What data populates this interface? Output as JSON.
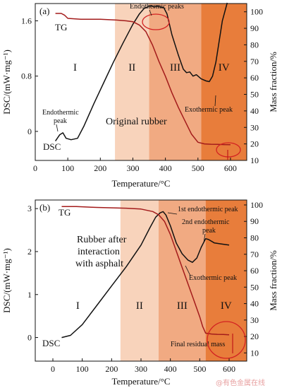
{
  "chart_data": [
    {
      "panel_label": "(a)",
      "type": "line",
      "xlabel": "Temperature/°C",
      "ylabel_left": "DSC/(mW·mg⁻¹)",
      "ylabel_right": "Mass fraction/%",
      "xlim": [
        0,
        650
      ],
      "ylim_left": [
        -0.42,
        1.85
      ],
      "ylim_right": [
        10,
        105
      ],
      "x_ticks": [
        0,
        100,
        200,
        300,
        400,
        500,
        600
      ],
      "y_left_ticks": [
        0,
        0.8,
        1.6
      ],
      "y_left_tick_labels": [
        "0",
        "0.8",
        "1.6"
      ],
      "y_right_ticks": [
        10,
        20,
        30,
        40,
        50,
        60,
        70,
        80,
        90,
        100
      ],
      "regions": [
        {
          "label": "I",
          "x_range": [
            0,
            245
          ],
          "color": "#ffffff"
        },
        {
          "label": "II",
          "x_range": [
            245,
            350
          ],
          "color": "#f8d3bb"
        },
        {
          "label": "III",
          "x_range": [
            350,
            510
          ],
          "color": "#f1aa82"
        },
        {
          "label": "IV",
          "x_range": [
            510,
            650
          ],
          "color": "#e87d3b"
        }
      ],
      "series": [
        {
          "name": "DSC",
          "axis": "left",
          "color": "#111111",
          "x": [
            62,
            75,
            85,
            95,
            110,
            130,
            150,
            180,
            210,
            240,
            270,
            300,
            320,
            335,
            345,
            355,
            365,
            375,
            385,
            395,
            405,
            420,
            440,
            455,
            465,
            475,
            485,
            495,
            510,
            525,
            535,
            545,
            555,
            565,
            575,
            590
          ],
          "y": [
            -0.14,
            -0.05,
            -0.02,
            -0.1,
            -0.12,
            -0.1,
            0.08,
            0.4,
            0.7,
            1.0,
            1.28,
            1.55,
            1.7,
            1.78,
            1.8,
            1.82,
            1.8,
            1.81,
            1.8,
            1.79,
            1.7,
            1.4,
            1.1,
            0.9,
            0.85,
            0.86,
            0.8,
            0.82,
            0.76,
            0.73,
            0.72,
            0.8,
            1.0,
            1.3,
            1.6,
            1.86
          ]
        },
        {
          "name": "TG",
          "axis": "right",
          "color": "#a31b1b",
          "x": [
            62,
            80,
            90,
            100,
            140,
            200,
            250,
            280,
            300,
            320,
            340,
            360,
            380,
            400,
            420,
            440,
            460,
            480,
            500,
            520,
            540,
            560,
            580,
            600
          ],
          "y": [
            99,
            99,
            98,
            96,
            95.5,
            95.5,
            95,
            94.5,
            94,
            92,
            88,
            80,
            70,
            61,
            51,
            42,
            34,
            26,
            21,
            20,
            19.8,
            19.7,
            19.6,
            19.5
          ]
        }
      ],
      "annotations": [
        "Endothermic peaks",
        "Endothermic peak",
        "Exothermic peak",
        "Original rubber",
        "TG",
        "DSC"
      ]
    },
    {
      "panel_label": "(b)",
      "type": "line",
      "xlabel": "Temperature/°C",
      "ylabel_left": "DSC/(mW·mg⁻¹)",
      "ylabel_right": "Mass fraction/%",
      "xlim": [
        -60,
        660
      ],
      "ylim_left": [
        -0.55,
        3.2
      ],
      "ylim_right": [
        5,
        103
      ],
      "x_ticks": [
        0,
        100,
        200,
        300,
        400,
        500,
        600
      ],
      "y_left_ticks": [
        0,
        1,
        2,
        3
      ],
      "y_left_tick_labels": [
        "0",
        "1",
        "2",
        "3"
      ],
      "y_right_ticks": [
        10,
        20,
        30,
        40,
        50,
        60,
        70,
        80,
        90,
        100
      ],
      "regions": [
        {
          "label": "I",
          "x_range": [
            -60,
            230
          ],
          "color": "#ffffff"
        },
        {
          "label": "II",
          "x_range": [
            230,
            360
          ],
          "color": "#f8d3bb"
        },
        {
          "label": "III",
          "x_range": [
            360,
            520
          ],
          "color": "#f1aa82"
        },
        {
          "label": "IV",
          "x_range": [
            520,
            660
          ],
          "color": "#e87d3b"
        }
      ],
      "series": [
        {
          "name": "DSC",
          "axis": "left",
          "color": "#111111",
          "x": [
            30,
            60,
            100,
            150,
            200,
            250,
            300,
            330,
            350,
            365,
            375,
            385,
            400,
            420,
            440,
            460,
            475,
            490,
            505,
            520,
            530,
            550,
            570,
            600
          ],
          "y": [
            0.0,
            0.05,
            0.3,
            0.75,
            1.2,
            1.65,
            2.15,
            2.55,
            2.8,
            2.9,
            2.93,
            2.85,
            2.6,
            2.2,
            1.95,
            1.8,
            1.75,
            1.85,
            2.1,
            2.3,
            2.28,
            2.2,
            2.18,
            2.15
          ]
        },
        {
          "name": "TG",
          "axis": "right",
          "color": "#a31b1b",
          "x": [
            30,
            80,
            150,
            250,
            300,
            340,
            360,
            380,
            400,
            420,
            440,
            460,
            480,
            500,
            510,
            520,
            540,
            560,
            580,
            600
          ],
          "y": [
            99,
            99,
            98.5,
            98,
            97.5,
            96,
            94,
            90,
            82,
            72,
            62,
            52,
            42,
            32,
            26,
            22,
            21.5,
            21.3,
            21.2,
            21
          ]
        }
      ],
      "annotations": [
        "1st endothermic peak",
        "2nd endothermic peak",
        "Exothermic peak",
        "Final residual mass",
        "Rubber after interaction with asphalt",
        "TG",
        "DSC"
      ]
    }
  ],
  "text": {
    "a_panel": "(a)",
    "a_tg": "TG",
    "a_dsc": "DSC",
    "a_endo_peaks": "Endothermic peaks",
    "a_endo_peak_1": "Endothermic",
    "a_endo_peak_2": "peak",
    "a_exo_peak": "Exothermic peak",
    "a_sample": "Original rubber",
    "b_panel": "(b)",
    "b_tg": "TG",
    "b_dsc": "DSC",
    "b_first_endo": "1st endothermic peak",
    "b_second_endo_1": "2nd endothermic",
    "b_second_endo_2": "peak",
    "b_exo_peak": "Exothermic peak",
    "b_final_mass": "Final residual mass",
    "b_sample_1": "Rubber after",
    "b_sample_2": "interaction",
    "b_sample_3": "with asphalt",
    "region_I": "I",
    "region_II": "II",
    "region_III": "III",
    "region_IV": "IV",
    "xlabel": "Temperature/°C",
    "ylabel_left": "DSC/(mW·mg⁻¹)",
    "ylabel_right": "Mass fraction/%",
    "watermark": "@有色金属在线"
  }
}
